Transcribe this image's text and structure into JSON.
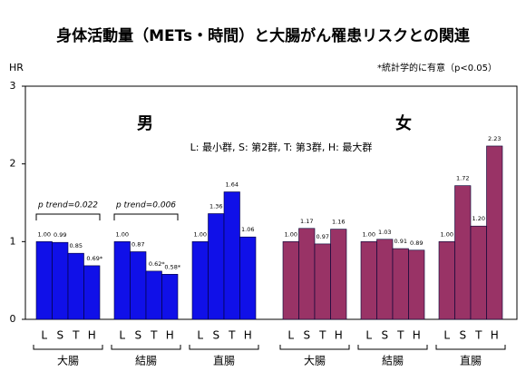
{
  "chart_data": {
    "type": "bar",
    "title": "身体活動量（METs・時間）と大腸がん罹患リスクとの関連",
    "y_label": "HR",
    "note": "*統計学的に有意（p<0.05）",
    "legend_text": "L: 最小群, S: 第2群, T: 第3群, H: 最大群",
    "ylim": [
      0,
      3
    ],
    "yticks": [
      0,
      1,
      2,
      3
    ],
    "categories": [
      "L",
      "S",
      "T",
      "H"
    ],
    "panels": [
      {
        "label": "男",
        "color": "#1010e8",
        "groups": [
          {
            "name": "大腸",
            "annotation": "p trend=0.022",
            "values": [
              1.0,
              0.99,
              0.85,
              0.69
            ],
            "value_labels": [
              "1.00",
              "0.99",
              "0.85",
              "0.69*"
            ]
          },
          {
            "name": "結腸",
            "annotation": "p trend=0.006",
            "values": [
              1.0,
              0.87,
              0.62,
              0.58
            ],
            "value_labels": [
              "1.00",
              "0.87",
              "0.62*",
              "0.58*"
            ]
          },
          {
            "name": "直腸",
            "values": [
              1.0,
              1.36,
              1.64,
              1.06
            ],
            "value_labels": [
              "1.00",
              "1.36",
              "1.64",
              "1.06"
            ]
          }
        ]
      },
      {
        "label": "女",
        "color": "#993366",
        "groups": [
          {
            "name": "大腸",
            "values": [
              1.0,
              1.17,
              0.97,
              1.16
            ],
            "value_labels": [
              "1.00",
              "1.17",
              "0.97",
              "1.16"
            ]
          },
          {
            "name": "結腸",
            "values": [
              1.0,
              1.03,
              0.91,
              0.89
            ],
            "value_labels": [
              "1.00",
              "1.03",
              "0.91",
              "0.89"
            ]
          },
          {
            "name": "直腸",
            "values": [
              1.0,
              1.72,
              1.2,
              2.23
            ],
            "value_labels": [
              "1.00",
              "1.72",
              "1.20",
              "2.23"
            ]
          }
        ]
      }
    ]
  }
}
